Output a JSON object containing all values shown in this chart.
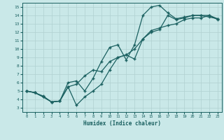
{
  "xlabel": "Humidex (Indice chaleur)",
  "ylabel": "",
  "xlim": [
    -0.5,
    23.5
  ],
  "ylim": [
    2.5,
    15.5
  ],
  "xticks": [
    0,
    1,
    2,
    3,
    4,
    5,
    6,
    7,
    8,
    9,
    10,
    11,
    12,
    13,
    14,
    15,
    16,
    17,
    18,
    19,
    20,
    21,
    22,
    23
  ],
  "yticks": [
    3,
    4,
    5,
    6,
    7,
    8,
    9,
    10,
    11,
    12,
    13,
    14,
    15
  ],
  "background_color": "#c9e8e8",
  "line_color": "#1a6060",
  "grid_color": "#b0d0d0",
  "line1_x": [
    0,
    1,
    2,
    3,
    4,
    5,
    6,
    7,
    8,
    9,
    10,
    11,
    12,
    13,
    14,
    15,
    16,
    17,
    18,
    19,
    20,
    21,
    22,
    23
  ],
  "line1_y": [
    5.0,
    4.8,
    4.4,
    3.7,
    3.8,
    5.5,
    5.8,
    6.8,
    7.5,
    7.3,
    8.5,
    9.0,
    9.3,
    10.0,
    11.2,
    12.2,
    12.5,
    12.8,
    13.0,
    13.5,
    13.7,
    13.7,
    14.0,
    13.6
  ],
  "line2_x": [
    0,
    1,
    2,
    3,
    4,
    5,
    6,
    7,
    8,
    9,
    10,
    11,
    12,
    13,
    14,
    15,
    16,
    17,
    18,
    19,
    20,
    21,
    22,
    23
  ],
  "line2_y": [
    5.0,
    4.8,
    4.3,
    3.7,
    3.8,
    6.0,
    6.2,
    5.0,
    6.5,
    8.5,
    10.2,
    10.5,
    8.7,
    10.5,
    14.0,
    15.0,
    15.2,
    14.3,
    13.6,
    13.8,
    14.0,
    14.0,
    13.8,
    13.6
  ],
  "line3_x": [
    0,
    1,
    2,
    3,
    4,
    5,
    6,
    7,
    8,
    9,
    10,
    11,
    12,
    13,
    14,
    15,
    16,
    17,
    18,
    19,
    20,
    21,
    22,
    23
  ],
  "line3_y": [
    5.0,
    4.8,
    4.3,
    3.7,
    3.8,
    5.5,
    3.3,
    4.3,
    5.0,
    5.8,
    7.5,
    9.0,
    9.3,
    8.8,
    11.2,
    12.0,
    12.3,
    14.0,
    13.5,
    13.7,
    14.0,
    14.0,
    14.0,
    13.5
  ]
}
